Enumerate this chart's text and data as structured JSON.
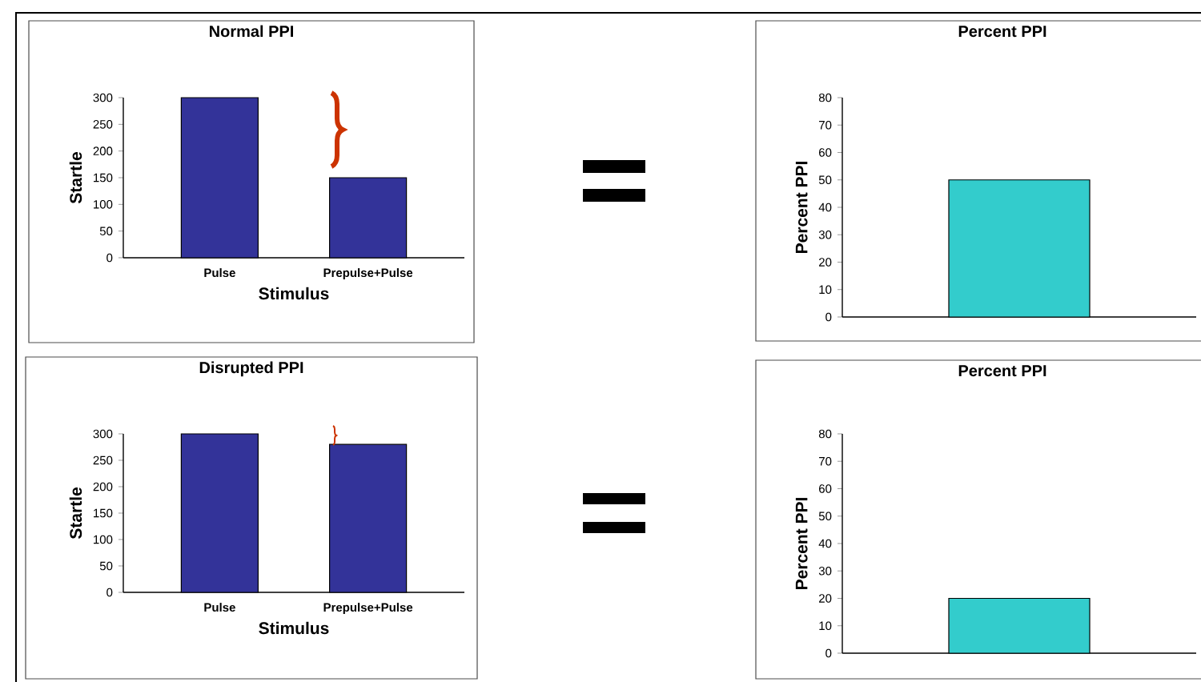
{
  "chart_data": [
    {
      "type": "bar",
      "title": "Normal PPI",
      "xlabel": "Stimulus",
      "ylabel": "Startle",
      "categories": [
        "Pulse",
        "Prepulse+Pulse"
      ],
      "values": [
        300,
        150
      ],
      "color": "#333399",
      "ylim": [
        0,
        300
      ],
      "yticks": [
        0,
        50,
        100,
        150,
        200,
        250,
        300
      ]
    },
    {
      "type": "bar",
      "title": "Percent PPI",
      "ylabel": "Percent PPI",
      "categories": [
        null
      ],
      "values": [
        50
      ],
      "color": "#33cccc",
      "ylim": [
        0,
        80
      ],
      "yticks": [
        0,
        10,
        20,
        30,
        40,
        50,
        60,
        70,
        80
      ]
    },
    {
      "type": "bar",
      "title": "Disrupted PPI",
      "xlabel": "Stimulus",
      "ylabel": "Startle",
      "categories": [
        "Pulse",
        "Prepulse+Pulse"
      ],
      "values": [
        300,
        280
      ],
      "color": "#333399",
      "ylim": [
        0,
        300
      ],
      "yticks": [
        0,
        50,
        100,
        150,
        200,
        250,
        300
      ]
    },
    {
      "type": "bar",
      "title": "Percent PPI",
      "ylabel": "Percent PPI",
      "categories": [
        null
      ],
      "values": [
        20
      ],
      "color": "#33cccc",
      "ylim": [
        0,
        80
      ],
      "yticks": [
        0,
        10,
        20,
        30,
        40,
        50,
        60,
        70,
        80
      ]
    }
  ]
}
